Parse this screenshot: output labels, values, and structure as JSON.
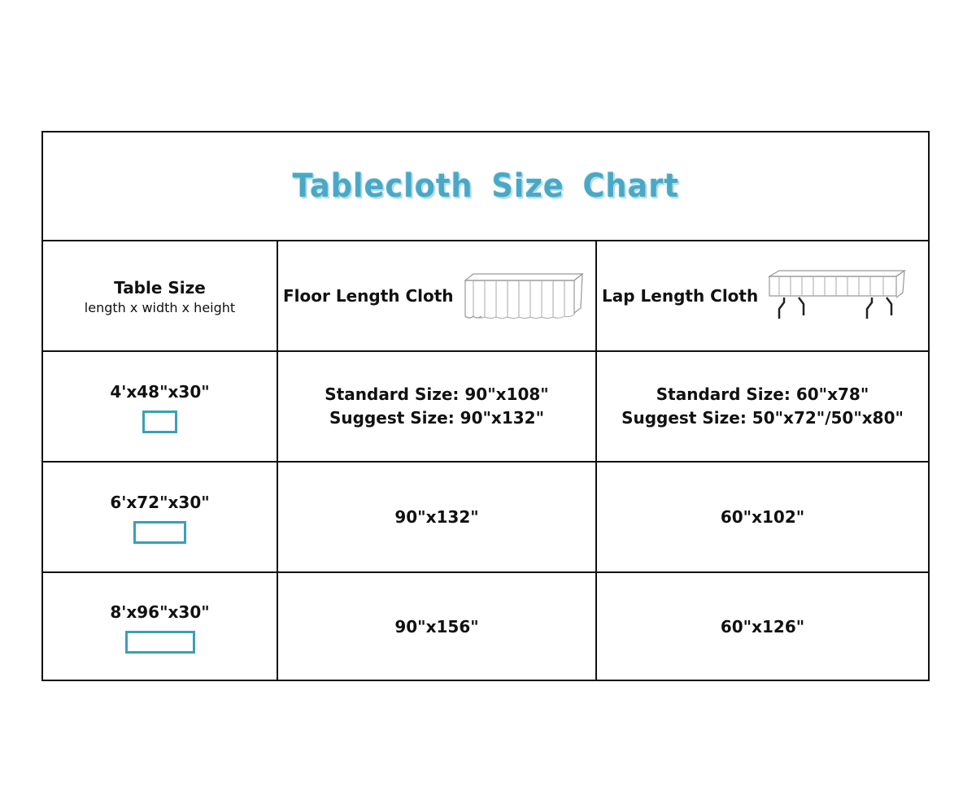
{
  "title": "Tablecloth  Size  Chart",
  "colors": {
    "title": "#4aa8c6",
    "table_outline": "#3aa0b8",
    "border": "#111111"
  },
  "header": {
    "col1_title": "Table Size",
    "col1_sub": "length x width x height",
    "col2": "Floor Length Cloth",
    "col2_icon": "floor-length-tablecloth-icon",
    "col3": "Lap Length Cloth",
    "col3_icon": "lap-length-tablecloth-icon"
  },
  "rows": [
    {
      "size": "4'x48\"x30\"",
      "floor": [
        "Standard Size: 90\"x108\"",
        "Suggest Size: 90\"x132\""
      ],
      "lap": [
        "Standard Size: 60\"x78\"",
        "Suggest Size: 50\"x72\"/50\"x80\""
      ]
    },
    {
      "size": "6'x72\"x30\"",
      "floor": [
        "90\"x132\""
      ],
      "lap": [
        "60\"x102\""
      ]
    },
    {
      "size": "8'x96\"x30\"",
      "floor": [
        "90\"x156\""
      ],
      "lap": [
        "60\"x126\""
      ]
    }
  ]
}
